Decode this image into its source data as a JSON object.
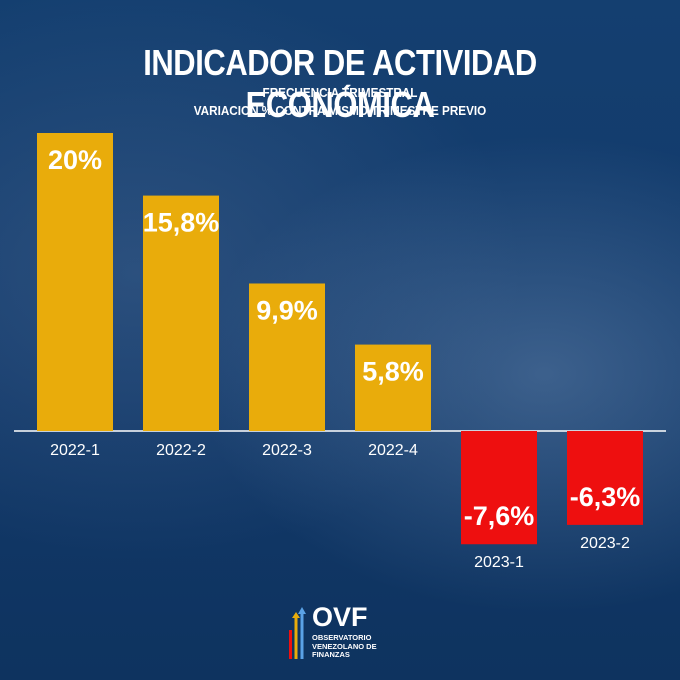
{
  "header": {
    "title": "INDICADOR DE ACTIVIDAD ECONÓMICA",
    "subtitle_1": "FRECUENCIA TRIMESTRAL",
    "subtitle_2": "VARIACION % CONTRA MISMO TRIMESTRE PREVIO"
  },
  "logo": {
    "acronym": "OVF",
    "line_1": "OBSERVATORIO",
    "line_2": "VENEZOLANO DE",
    "line_3": "FINANZAS"
  },
  "colors": {
    "positive": "#e9ac0b",
    "negative": "#ee0f0f",
    "background": "#0f3a6b"
  },
  "chart_data": {
    "type": "bar",
    "categories": [
      "2022-1",
      "2022-2",
      "2022-3",
      "2022-4",
      "2023-1",
      "2023-2"
    ],
    "values": [
      20,
      15.8,
      9.9,
      5.8,
      -7.6,
      -6.3
    ],
    "data_labels": [
      "20%",
      "15,8%",
      "9,9%",
      "5,8%",
      "-7,6%",
      "-6,3%"
    ],
    "title": "INDICADOR DE ACTIVIDAD ECONÓMICA",
    "xlabel": "",
    "ylabel": "",
    "grid": false,
    "legend": "none"
  }
}
